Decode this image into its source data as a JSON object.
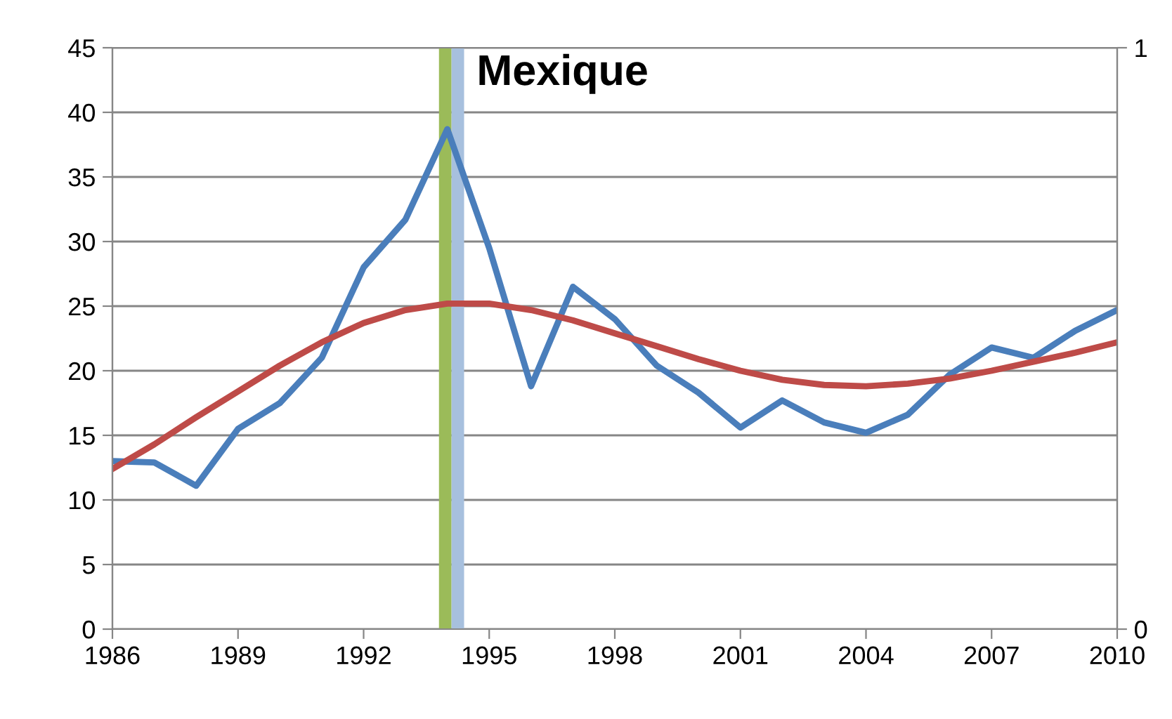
{
  "chart_data": {
    "type": "line",
    "x": [
      1986,
      1987,
      1988,
      1989,
      1990,
      1991,
      1992,
      1993,
      1994,
      1995,
      1996,
      1997,
      1998,
      1999,
      2000,
      2001,
      2002,
      2003,
      2004,
      2005,
      2006,
      2007,
      2008,
      2009,
      2010
    ],
    "series": [
      {
        "color": "#4a7ebb",
        "values": [
          13,
          12.9,
          11.1,
          15.5,
          17.5,
          21,
          28,
          31.7,
          38.7,
          29.5,
          18.8,
          26.5,
          24,
          20.4,
          18.3,
          15.6,
          17.7,
          16,
          15.2,
          16.6,
          19.7,
          21.8,
          21,
          23.1,
          24.7
        ]
      },
      {
        "color": "#be4b48",
        "values": [
          12.4,
          14.3,
          16.4,
          18.4,
          20.4,
          22.2,
          23.7,
          24.7,
          25.2,
          25.2,
          24.7,
          23.9,
          22.9,
          21.9,
          20.9,
          20,
          19.3,
          18.9,
          18.8,
          19,
          19.4,
          20,
          20.7,
          21.4,
          22.2
        ]
      }
    ],
    "xlim": [
      1986,
      2010
    ],
    "xticks": [
      1986,
      1989,
      1992,
      1995,
      1998,
      2001,
      2004,
      2007,
      2010
    ],
    "ylim": [
      0,
      45
    ],
    "yticks": [
      0,
      5,
      10,
      15,
      20,
      25,
      30,
      35,
      40,
      45
    ],
    "y2lim": [
      0,
      1
    ],
    "y2ticks": [
      0,
      1
    ],
    "bands": [
      {
        "axis": "x",
        "from": 1993.8,
        "to": 1994.1,
        "label": "Mexique",
        "color": "#9bbb59"
      },
      {
        "axis": "x",
        "from": 1994.1,
        "to": 1994.4,
        "color": "#a7c0de"
      }
    ],
    "grid": "y",
    "legend": false,
    "marker": "none",
    "line_style": "solid"
  }
}
